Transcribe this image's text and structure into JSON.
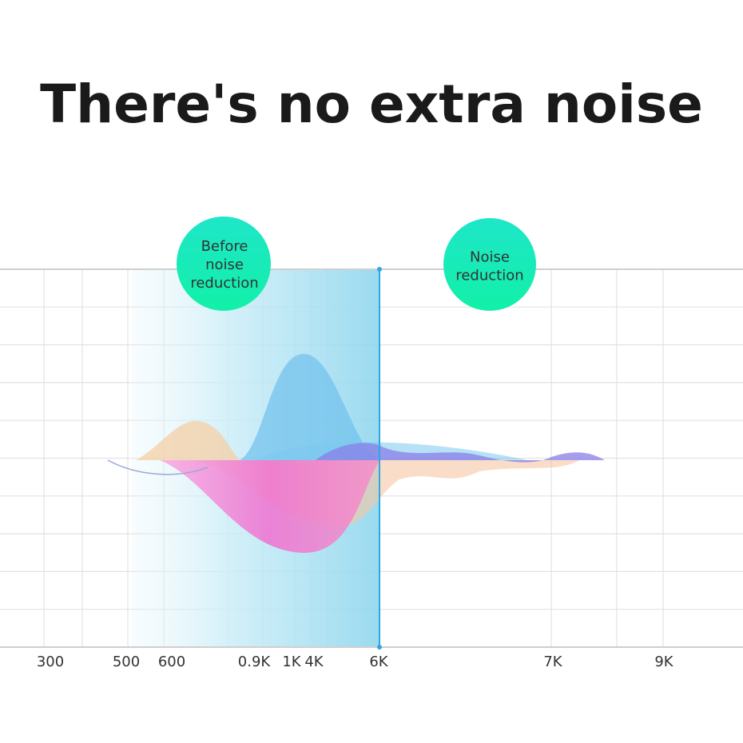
{
  "header": {
    "title": "There's no extra noise"
  },
  "badges": [
    {
      "lines": [
        "Before",
        "noise",
        "reduction"
      ]
    },
    {
      "lines": [
        "Noise",
        "reduction"
      ]
    }
  ],
  "axis": {
    "labels": [
      "300",
      "500",
      "600",
      "0.9K",
      "1K",
      "4K",
      "6K",
      "7K",
      "9K"
    ]
  }
}
